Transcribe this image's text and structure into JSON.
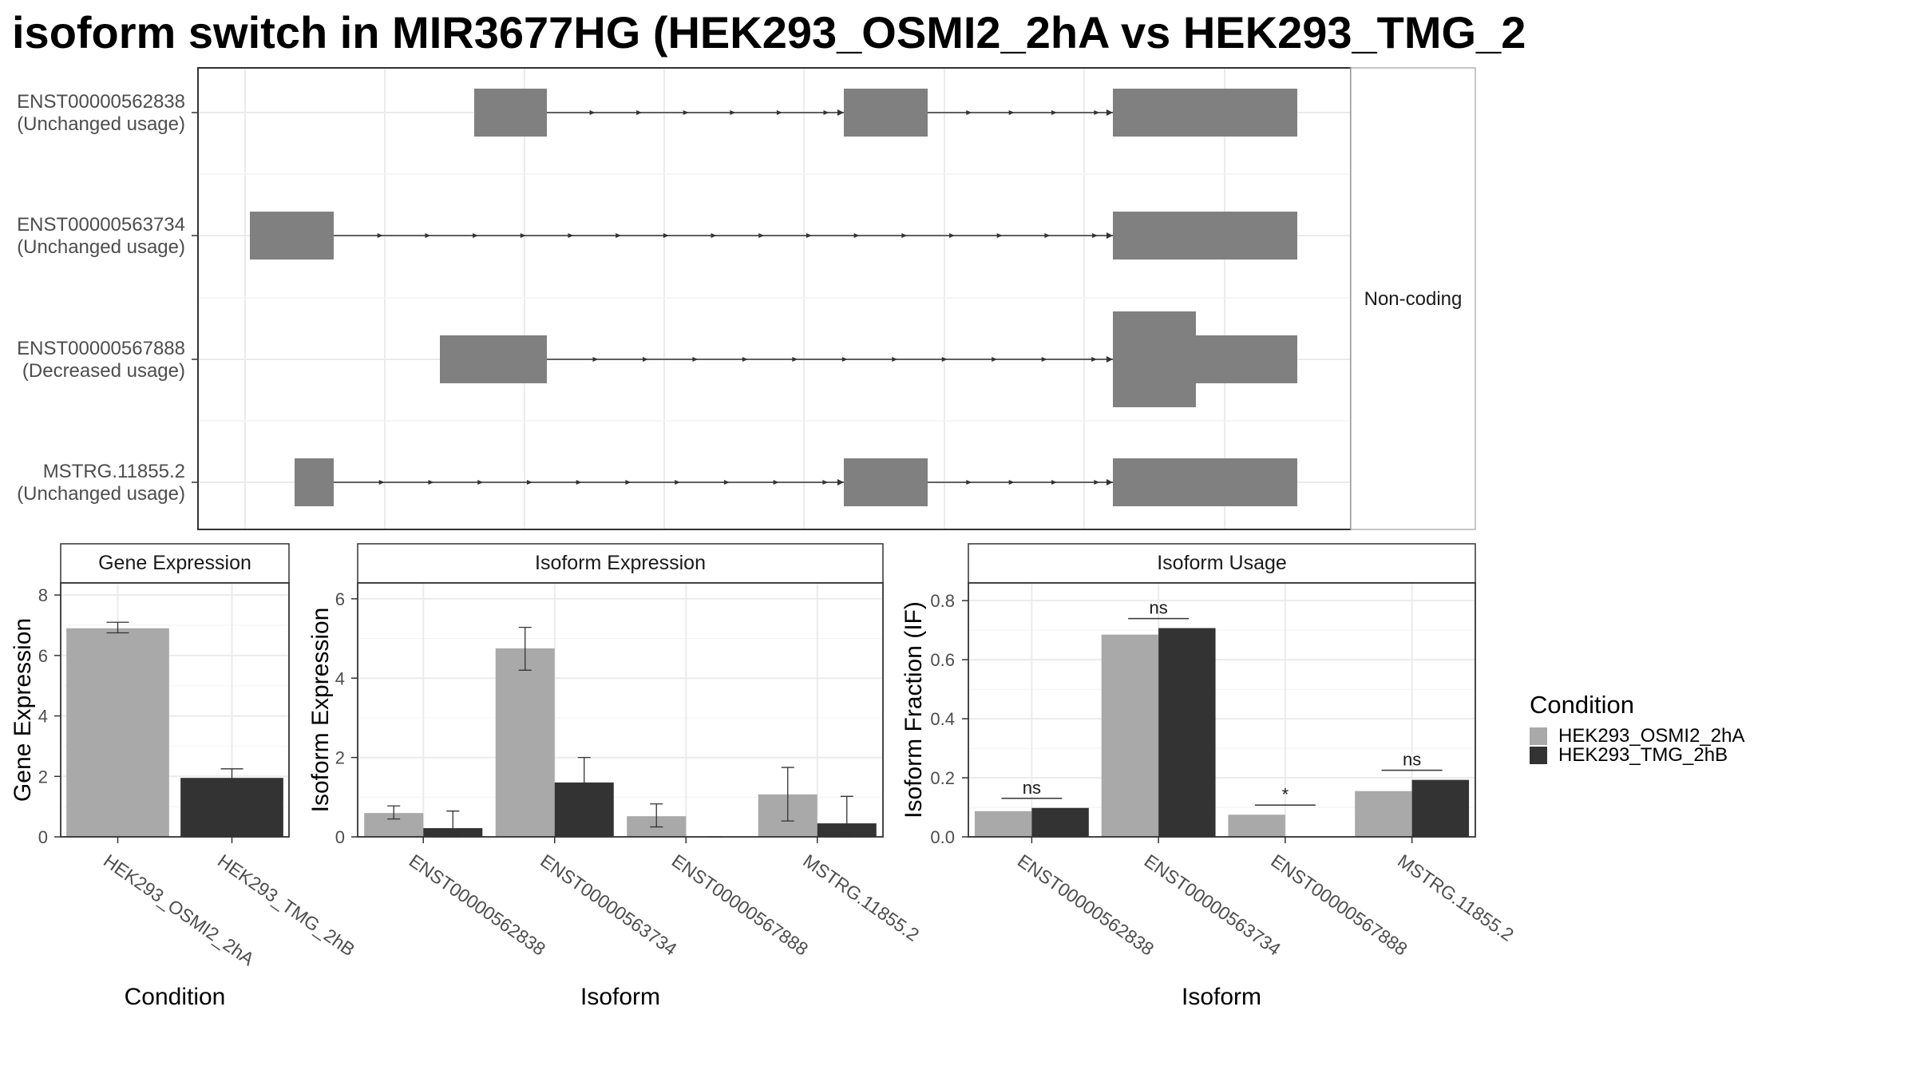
{
  "title": "isoform switch in MIR3677HG (HEK293_OSMI2_2hA vs HEK293_TMG_2",
  "isoform_structure": {
    "strip_label": "Non-coding",
    "isoforms": [
      {
        "id": "ENST00000562838",
        "status": "(Unchanged usage)"
      },
      {
        "id": "ENST00000563734",
        "status": "(Unchanged usage)"
      },
      {
        "id": "ENST00000567888",
        "status": "(Decreased usage)"
      },
      {
        "id": "MSTRG.11855.2",
        "status": "(Unchanged usage)"
      }
    ]
  },
  "legend": {
    "title": "Condition",
    "entries": [
      {
        "label": "HEK293_OSMI2_2hA",
        "color": "#a9a9a9"
      },
      {
        "label": "HEK293_TMG_2hB",
        "color": "#333333"
      }
    ]
  },
  "chart_data": [
    {
      "type": "bar",
      "title": "Gene Expression",
      "xlabel": "Condition",
      "ylabel": "Gene Expression",
      "ylim": [
        0,
        8.4
      ],
      "yticks": [
        0,
        2,
        4,
        6,
        8
      ],
      "categories": [
        "HEK293_OSMI2_2hA",
        "HEK293_TMG_2hB"
      ],
      "values": [
        6.9,
        1.95
      ],
      "errors": [
        [
          6.75,
          7.1
        ],
        [
          1.6,
          2.25
        ]
      ],
      "colors": [
        "#a9a9a9",
        "#333333"
      ]
    },
    {
      "type": "bar",
      "title": "Isoform Expression",
      "xlabel": "Isoform",
      "ylabel": "Isoform Expression",
      "ylim": [
        0,
        6.4
      ],
      "yticks": [
        0,
        2,
        4,
        6
      ],
      "categories": [
        "ENST00000562838",
        "ENST00000563734",
        "ENST00000567888",
        "MSTRG.11855.2"
      ],
      "series": [
        {
          "name": "HEK293_OSMI2_2hA",
          "values": [
            0.6,
            4.75,
            0.52,
            1.07
          ],
          "errors": [
            [
              0.45,
              0.78
            ],
            [
              4.2,
              5.28
            ],
            [
              0.25,
              0.83
            ],
            [
              0.4,
              1.75
            ]
          ]
        },
        {
          "name": "HEK293_TMG_2hB",
          "values": [
            0.22,
            1.37,
            0.0,
            0.34
          ],
          "errors": [
            [
              0.0,
              0.65
            ],
            [
              0.77,
              2.0
            ],
            [
              0.0,
              0.0
            ],
            [
              0.0,
              1.02
            ]
          ]
        }
      ]
    },
    {
      "type": "bar",
      "title": "Isoform Usage",
      "xlabel": "Isoform",
      "ylabel": "Isoform Fraction (IF)",
      "ylim": [
        0,
        0.86
      ],
      "yticks": [
        "0.0",
        "0.2",
        "0.4",
        "0.6",
        "0.8"
      ],
      "categories": [
        "ENST00000562838",
        "ENST00000563734",
        "ENST00000567888",
        "MSTRG.11855.2"
      ],
      "series": [
        {
          "name": "HEK293_OSMI2_2hA",
          "values": [
            0.087,
            0.685,
            0.075,
            0.155
          ]
        },
        {
          "name": "HEK293_TMG_2hB",
          "values": [
            0.098,
            0.707,
            0.0,
            0.193
          ]
        }
      ],
      "significance": [
        "ns",
        "ns",
        "*",
        "ns"
      ]
    }
  ]
}
